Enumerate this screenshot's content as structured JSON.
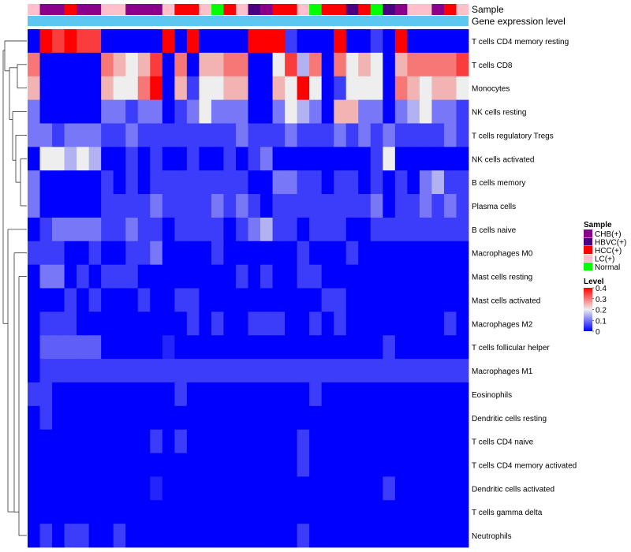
{
  "chart_data": {
    "type": "heatmap",
    "annotation_tracks": [
      {
        "label": "Sample",
        "kind": "categorical"
      },
      {
        "label": "Gene expression level",
        "kind": "constant",
        "color": "#5cc8f2"
      }
    ],
    "sample_groups": [
      "LC(+)",
      "CHB(+)",
      "CHB(+)",
      "HCC(+)",
      "CHB(+)",
      "CHB(+)",
      "LC(+)",
      "LC(+)",
      "CHB(+)",
      "CHB(+)",
      "CHB(+)",
      "LC(+)",
      "HCC(+)",
      "HCC(+)",
      "LC(+)",
      "Normal",
      "HCC(+)",
      "LC(+)",
      "HBVC(+)",
      "CHB(+)",
      "HCC(+)",
      "HCC(+)",
      "LC(+)",
      "Normal",
      "HCC(+)",
      "HCC(+)",
      "HBVC(+)",
      "HCC(+)",
      "Normal",
      "HBVC(+)",
      "CHB(+)",
      "LC(+)",
      "LC(+)",
      "CHB(+)",
      "HCC(+)",
      "LC(+)"
    ],
    "rows": [
      "T cells CD4 memory resting",
      "T cells CD8",
      "Monocytes",
      "NK cells resting",
      "T cells regulatory  Tregs",
      "NK cells activated",
      "B cells memory",
      "Plasma cells",
      "B cells naive",
      "Macrophages M0",
      "Mast cells resting",
      "Mast cells activated",
      "Macrophages M2",
      "T cells follicular helper",
      "Macrophages M1",
      "Eosinophils",
      "Dendritic cells resting",
      "T cells CD4 naive",
      "T cells CD4 memory activated",
      "Dendritic cells activated",
      "T cells gamma delta",
      "Neutrophils"
    ],
    "values": [
      [
        0,
        0.4,
        0.35,
        0.4,
        0.35,
        0.35,
        0,
        0,
        0,
        0,
        0,
        0.4,
        0,
        0.4,
        0,
        0,
        0,
        0,
        0.4,
        0.4,
        0.4,
        0.05,
        0,
        0,
        0,
        0.4,
        0,
        0,
        0.05,
        0,
        0.4,
        0,
        0,
        0,
        0,
        0
      ],
      [
        0.3,
        0,
        0,
        0,
        0,
        0,
        0.3,
        0.25,
        0.2,
        0.25,
        0.35,
        0,
        0.3,
        0,
        0.25,
        0.25,
        0.3,
        0.3,
        0,
        0,
        0.2,
        0.35,
        0.15,
        0.3,
        0,
        0.3,
        0.2,
        0.25,
        0.2,
        0,
        0.25,
        0.3,
        0.3,
        0.3,
        0.3,
        0.35
      ],
      [
        0.25,
        0,
        0,
        0,
        0,
        0,
        0.25,
        0.2,
        0.2,
        0.3,
        0.4,
        0,
        0.25,
        0.05,
        0.2,
        0.2,
        0.25,
        0.25,
        0,
        0,
        0.25,
        0.2,
        0.4,
        0.2,
        0,
        0.05,
        0.2,
        0.2,
        0.2,
        0,
        0.3,
        0.25,
        0.2,
        0.25,
        0.25,
        0.2
      ],
      [
        0.1,
        0,
        0,
        0,
        0,
        0,
        0.1,
        0.1,
        0.05,
        0.1,
        0.1,
        0,
        0.05,
        0.1,
        0.2,
        0.1,
        0.1,
        0.1,
        0,
        0,
        0.1,
        0.2,
        0.15,
        0.1,
        0,
        0.25,
        0.25,
        0.1,
        0.1,
        0,
        0.1,
        0.15,
        0.2,
        0.1,
        0.1,
        0.05
      ],
      [
        0.1,
        0.1,
        0.05,
        0.1,
        0.1,
        0.1,
        0.05,
        0.05,
        0.1,
        0.05,
        0.05,
        0.05,
        0.05,
        0.05,
        0.05,
        0.05,
        0.05,
        0.1,
        0.05,
        0.05,
        0.05,
        0.1,
        0.05,
        0.05,
        0.05,
        0.1,
        0.05,
        0.1,
        0.05,
        0.1,
        0.05,
        0.05,
        0.05,
        0.05,
        0.1,
        0.05
      ],
      [
        0,
        0.2,
        0.2,
        0.15,
        0.2,
        0.15,
        0,
        0,
        0.05,
        0,
        0.05,
        0,
        0,
        0.05,
        0,
        0,
        0.05,
        0,
        0.05,
        0.1,
        0,
        0,
        0,
        0,
        0,
        0,
        0,
        0,
        0.05,
        0.2,
        0,
        0,
        0,
        0,
        0,
        0
      ],
      [
        0.1,
        0,
        0,
        0,
        0,
        0,
        0.05,
        0,
        0.05,
        0,
        0.05,
        0.05,
        0.05,
        0.05,
        0.05,
        0.05,
        0.05,
        0.05,
        0,
        0,
        0.1,
        0.1,
        0.05,
        0.05,
        0,
        0.05,
        0.05,
        0,
        0.05,
        0,
        0.05,
        0,
        0.1,
        0.15,
        0.05,
        0.05
      ],
      [
        0.1,
        0,
        0,
        0,
        0,
        0,
        0.05,
        0.05,
        0.05,
        0.05,
        0.1,
        0.05,
        0.05,
        0.05,
        0.05,
        0.1,
        0.05,
        0.1,
        0.05,
        0,
        0.05,
        0.05,
        0.05,
        0.05,
        0.05,
        0.05,
        0.05,
        0.05,
        0.1,
        0,
        0.05,
        0.05,
        0.1,
        0.05,
        0.1,
        0.05
      ],
      [
        0,
        0.05,
        0.1,
        0.1,
        0.1,
        0.1,
        0.05,
        0.05,
        0.1,
        0.05,
        0.05,
        0,
        0.05,
        0.05,
        0.05,
        0.05,
        0,
        0.05,
        0.1,
        0.15,
        0.05,
        0.05,
        0,
        0.05,
        0.05,
        0.05,
        0,
        0,
        0.05,
        0.05,
        0.05,
        0.05,
        0.05,
        0.05,
        0.05,
        0.05
      ],
      [
        0.05,
        0.05,
        0.05,
        0,
        0,
        0.05,
        0,
        0,
        0.05,
        0.05,
        0.1,
        0,
        0,
        0,
        0,
        0.05,
        0,
        0,
        0,
        0,
        0,
        0,
        0.05,
        0,
        0,
        0,
        0.05,
        0,
        0,
        0,
        0,
        0,
        0,
        0,
        0,
        0
      ],
      [
        0,
        0.1,
        0.1,
        0,
        0.05,
        0,
        0.05,
        0.05,
        0.05,
        0,
        0,
        0,
        0,
        0,
        0,
        0,
        0,
        0.05,
        0,
        0.05,
        0,
        0,
        0.05,
        0.05,
        0,
        0,
        0,
        0,
        0,
        0,
        0,
        0,
        0,
        0,
        0,
        0
      ],
      [
        0,
        0,
        0,
        0.05,
        0,
        0.05,
        0,
        0,
        0,
        0.05,
        0,
        0,
        0.05,
        0.05,
        0,
        0,
        0,
        0,
        0,
        0,
        0,
        0,
        0,
        0,
        0.05,
        0.05,
        0,
        0,
        0,
        0,
        0,
        0,
        0,
        0,
        0,
        0
      ],
      [
        0,
        0.05,
        0.05,
        0.05,
        0,
        0,
        0,
        0,
        0,
        0,
        0,
        0,
        0,
        0.05,
        0,
        0.05,
        0,
        0,
        0.05,
        0.05,
        0.05,
        0,
        0,
        0.05,
        0,
        0.05,
        0,
        0,
        0,
        0,
        0,
        0,
        0,
        0,
        0.05,
        0
      ],
      [
        0,
        0.08,
        0.08,
        0.08,
        0.08,
        0.08,
        0,
        0,
        0,
        0,
        0,
        0.03,
        0,
        0,
        0,
        0,
        0,
        0,
        0,
        0,
        0,
        0,
        0,
        0,
        0,
        0,
        0,
        0,
        0,
        0.05,
        0,
        0,
        0,
        0,
        0,
        0
      ],
      [
        0,
        0.05,
        0.05,
        0.05,
        0.05,
        0.05,
        0.05,
        0.05,
        0.05,
        0.05,
        0.05,
        0.05,
        0.05,
        0.05,
        0.05,
        0.05,
        0.05,
        0.05,
        0.05,
        0.05,
        0.05,
        0.05,
        0.05,
        0.05,
        0.05,
        0.05,
        0.05,
        0.05,
        0.05,
        0.05,
        0.05,
        0.05,
        0.05,
        0.05,
        0.05,
        0.05
      ],
      [
        0.05,
        0.05,
        0,
        0,
        0,
        0,
        0,
        0,
        0,
        0,
        0,
        0,
        0.05,
        0,
        0,
        0,
        0,
        0,
        0,
        0,
        0,
        0,
        0,
        0.05,
        0,
        0,
        0,
        0,
        0,
        0,
        0,
        0,
        0,
        0,
        0,
        0
      ],
      [
        0,
        0.05,
        0,
        0,
        0,
        0,
        0,
        0,
        0,
        0,
        0,
        0,
        0,
        0,
        0,
        0,
        0,
        0,
        0,
        0,
        0,
        0,
        0,
        0,
        0,
        0,
        0,
        0,
        0,
        0,
        0,
        0,
        0,
        0,
        0,
        0
      ],
      [
        0,
        0,
        0,
        0,
        0,
        0,
        0,
        0,
        0,
        0,
        0.05,
        0,
        0.05,
        0,
        0,
        0,
        0,
        0,
        0,
        0,
        0,
        0,
        0.05,
        0,
        0,
        0,
        0,
        0,
        0,
        0,
        0,
        0,
        0,
        0,
        0,
        0
      ],
      [
        0,
        0,
        0,
        0,
        0,
        0,
        0,
        0,
        0,
        0,
        0,
        0,
        0,
        0,
        0,
        0,
        0,
        0,
        0,
        0,
        0,
        0,
        0.05,
        0,
        0,
        0,
        0,
        0,
        0,
        0,
        0,
        0,
        0,
        0,
        0,
        0
      ],
      [
        0,
        0,
        0,
        0,
        0,
        0,
        0,
        0,
        0,
        0,
        0.03,
        0,
        0,
        0,
        0,
        0,
        0,
        0,
        0,
        0,
        0,
        0,
        0,
        0,
        0,
        0,
        0,
        0,
        0,
        0.05,
        0,
        0,
        0,
        0,
        0,
        0
      ],
      [
        0,
        0,
        0,
        0,
        0,
        0,
        0,
        0,
        0,
        0,
        0,
        0,
        0,
        0,
        0,
        0,
        0,
        0,
        0,
        0,
        0,
        0,
        0,
        0,
        0,
        0,
        0,
        0,
        0,
        0,
        0,
        0,
        0,
        0,
        0,
        0
      ],
      [
        0,
        0.05,
        0,
        0.05,
        0.05,
        0,
        0,
        0.05,
        0,
        0,
        0,
        0,
        0,
        0,
        0,
        0,
        0,
        0,
        0,
        0,
        0,
        0,
        0.05,
        0,
        0,
        0,
        0,
        0,
        0,
        0,
        0,
        0,
        0,
        0,
        0,
        0
      ]
    ],
    "legend": {
      "sample_title": "Sample",
      "sample_entries": [
        {
          "label": "CHB(+)",
          "color": "#8b008b"
        },
        {
          "label": "HBVC(+)",
          "color": "#4b0082"
        },
        {
          "label": "HCC(+)",
          "color": "#ff0000"
        },
        {
          "label": "LC(+)",
          "color": "#ffc0cb"
        },
        {
          "label": "Normal",
          "color": "#00ff00"
        }
      ],
      "level_title": "Level",
      "level_ticks": [
        "0.4",
        "0.3",
        "0.2",
        "0.1",
        "0"
      ],
      "level_tick_values": [
        0.4,
        0.3,
        0.2,
        0.1,
        0
      ]
    },
    "color_scale": {
      "min": 0,
      "max": 0.4,
      "low": "#0000ff",
      "mid": "#eeeeee",
      "high": "#ff0000"
    }
  }
}
